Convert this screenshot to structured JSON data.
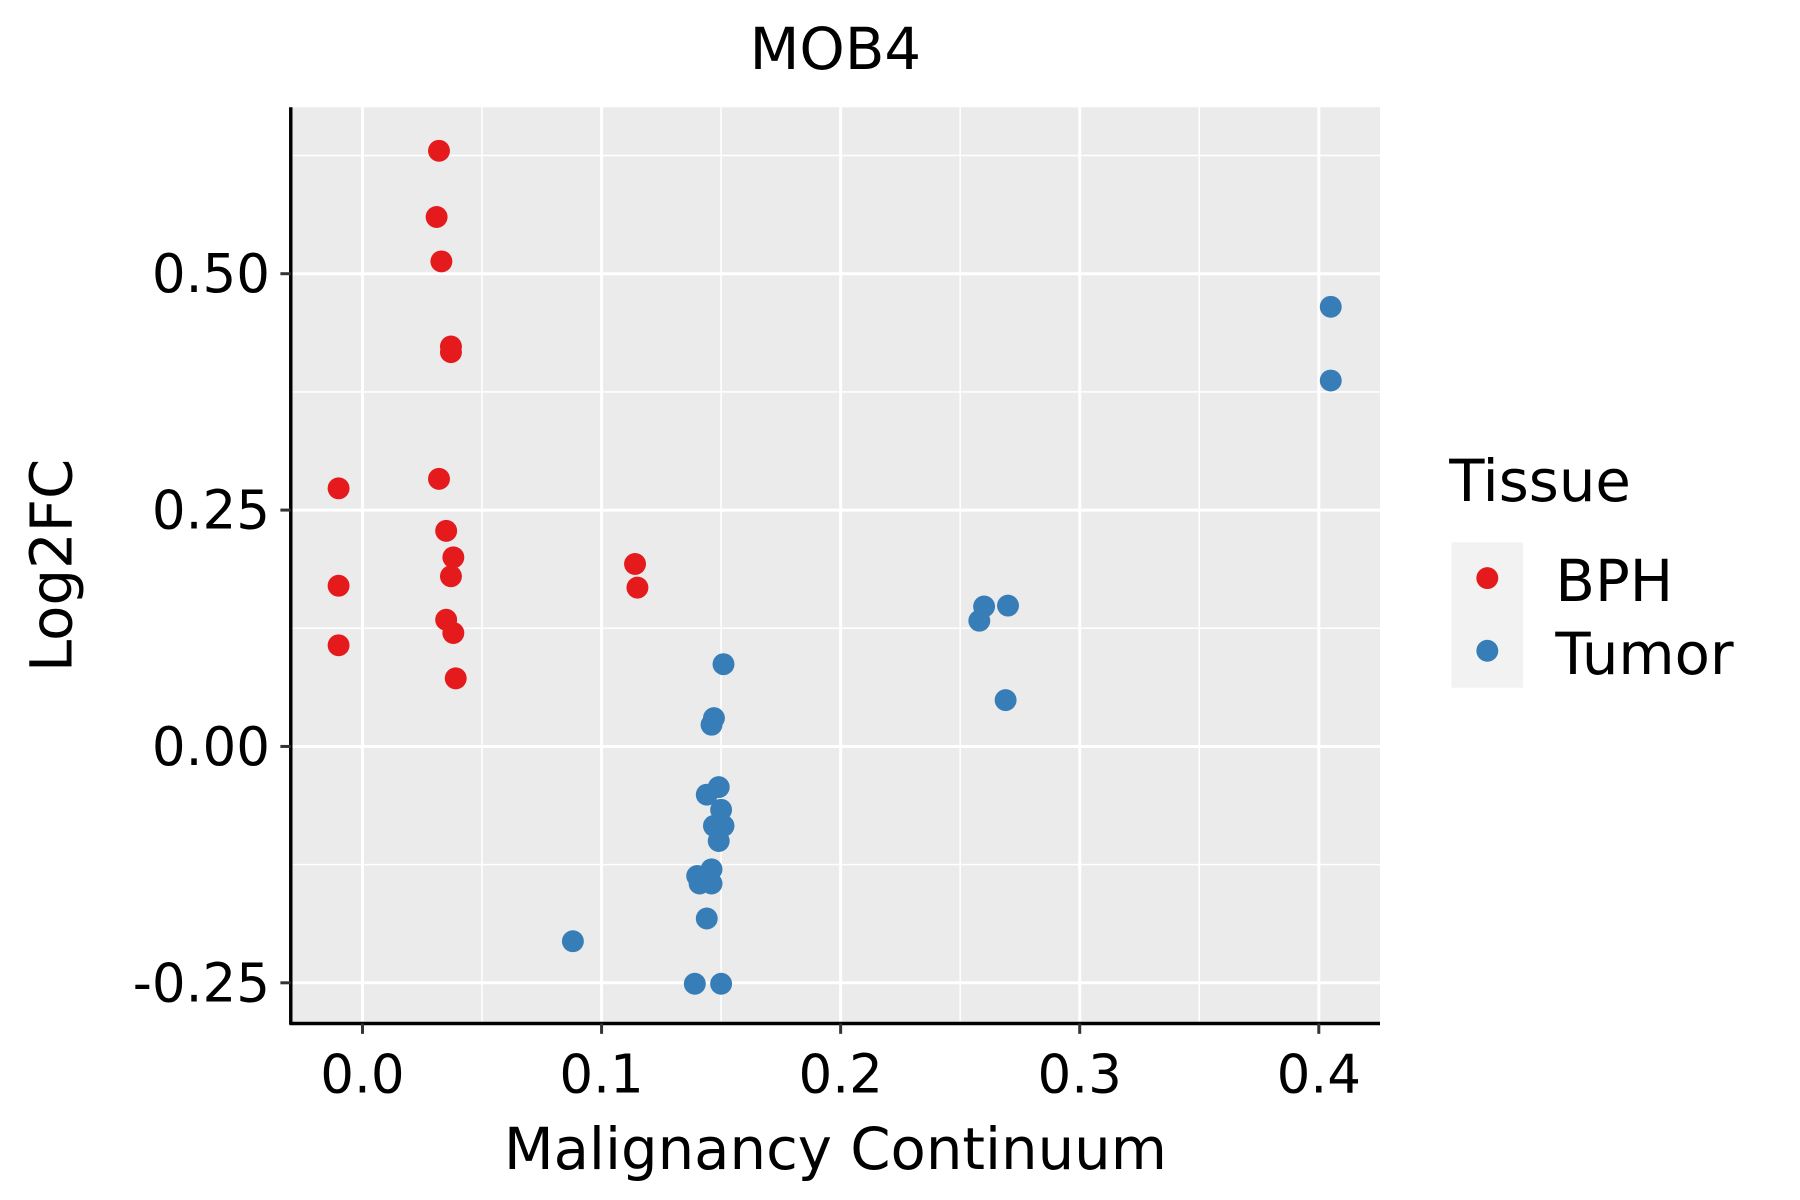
{
  "chart_data": {
    "type": "scatter",
    "title": "MOB4",
    "xlabel": "Malignancy Continuum",
    "ylabel": "Log2FC",
    "xlim": [
      -0.03,
      0.4256
    ],
    "ylim": [
      -0.293,
      0.676
    ],
    "x_ticks": [
      0.0,
      0.1,
      0.2,
      0.3,
      0.4
    ],
    "x_tick_labels": [
      "0.0",
      "0.1",
      "0.2",
      "0.3",
      "0.4"
    ],
    "y_ticks": [
      -0.25,
      0.0,
      0.25,
      0.5
    ],
    "y_tick_labels": [
      "-0.25",
      "0.00",
      "0.25",
      "0.50"
    ],
    "grid": true,
    "legend": {
      "title": "Tissue",
      "placement": "right"
    },
    "series": [
      {
        "name": "BPH",
        "color": "#E41A1C",
        "points": [
          [
            0.032,
            0.63
          ],
          [
            0.031,
            0.56
          ],
          [
            0.033,
            0.513
          ],
          [
            0.037,
            0.423
          ],
          [
            0.037,
            0.417
          ],
          [
            0.032,
            0.283
          ],
          [
            -0.01,
            0.273
          ],
          [
            0.035,
            0.228
          ],
          [
            0.038,
            0.2
          ],
          [
            0.037,
            0.18
          ],
          [
            -0.01,
            0.17
          ],
          [
            0.035,
            0.134
          ],
          [
            0.038,
            0.12
          ],
          [
            -0.01,
            0.107
          ],
          [
            0.039,
            0.072
          ],
          [
            0.114,
            0.193
          ],
          [
            0.115,
            0.168
          ]
        ]
      },
      {
        "name": "Tumor",
        "color": "#377EB8",
        "points": [
          [
            0.405,
            0.465
          ],
          [
            0.405,
            0.387
          ],
          [
            0.26,
            0.148
          ],
          [
            0.27,
            0.149
          ],
          [
            0.258,
            0.133
          ],
          [
            0.269,
            0.049
          ],
          [
            0.151,
            0.087
          ],
          [
            0.147,
            0.03
          ],
          [
            0.146,
            0.023
          ],
          [
            0.149,
            -0.043
          ],
          [
            0.144,
            -0.051
          ],
          [
            0.15,
            -0.067
          ],
          [
            0.147,
            -0.084
          ],
          [
            0.151,
            -0.084
          ],
          [
            0.149,
            -0.1
          ],
          [
            0.146,
            -0.13
          ],
          [
            0.14,
            -0.137
          ],
          [
            0.141,
            -0.145
          ],
          [
            0.146,
            -0.145
          ],
          [
            0.144,
            -0.182
          ],
          [
            0.088,
            -0.206
          ],
          [
            0.139,
            -0.251
          ],
          [
            0.15,
            -0.251
          ]
        ]
      }
    ]
  }
}
